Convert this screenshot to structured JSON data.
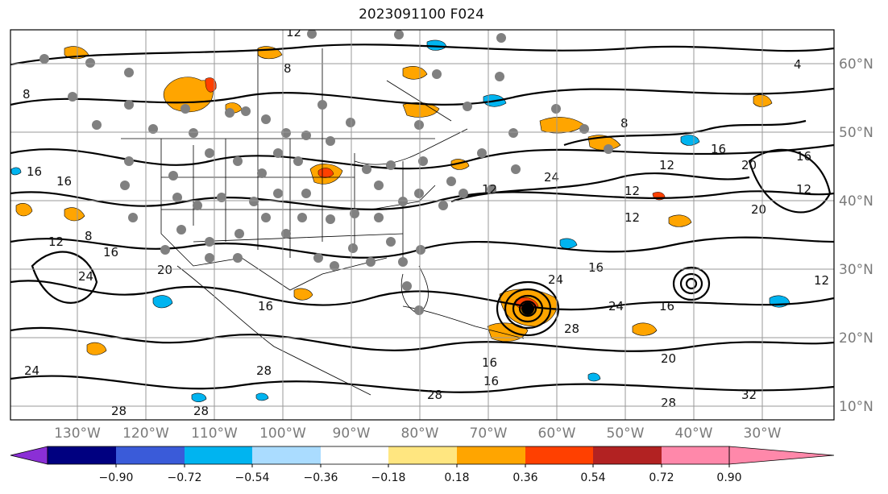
{
  "title": "2023091100 F024",
  "lon_labels": [
    "130°W",
    "120°W",
    "110°W",
    "100°W",
    "90°W",
    "80°W",
    "70°W",
    "60°W",
    "50°W",
    "40°W",
    "30°W"
  ],
  "lat_labels": [
    "60°N",
    "50°N",
    "40°N",
    "30°N",
    "20°N",
    "10°N"
  ],
  "colorbar": {
    "ticks": [
      "−0.90",
      "−0.72",
      "−0.54",
      "−0.36",
      "−0.18",
      "0.18",
      "0.36",
      "0.54",
      "0.72",
      "0.90"
    ],
    "colors": [
      "#8b2fd6",
      "#000080",
      "#3a5bd9",
      "#00b4f0",
      "#aadcff",
      "#ffffff",
      "#ffe680",
      "#ffa500",
      "#ff4000",
      "#b22222",
      "#ff88aa"
    ]
  },
  "contour_labels": [
    "8",
    "8",
    "8",
    "4",
    "12",
    "16",
    "16",
    "16",
    "16",
    "24",
    "24",
    "24",
    "24",
    "28",
    "28",
    "28",
    "28",
    "28",
    "20",
    "20",
    "20",
    "12",
    "12",
    "12",
    "12",
    "16",
    "16",
    "16",
    "24",
    "28",
    "20",
    "32",
    "16",
    "12",
    "16",
    "8",
    "12",
    "12",
    "16"
  ],
  "colors": {
    "warm": "#ffa500",
    "warm_strong": "#ff4000",
    "cold": "#00b4f0",
    "station": "#808080"
  }
}
